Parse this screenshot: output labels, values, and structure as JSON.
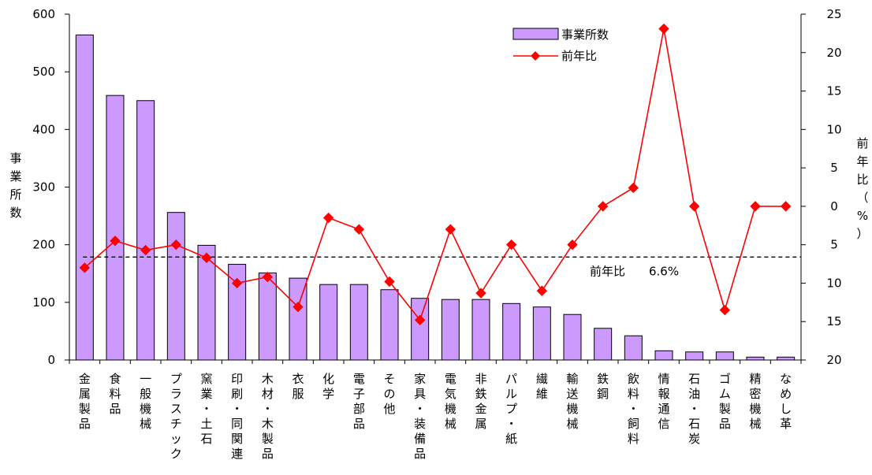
{
  "chart_data": {
    "type": "bar",
    "categories": [
      "金属製品",
      "食料品",
      "一般機械",
      "プラスチック",
      "窯業・土石",
      "印刷・同関連",
      "木材・木製品",
      "衣服",
      "化学",
      "電子部品",
      "その他",
      "家具・装備品",
      "電気機械",
      "非鉄金属",
      "パルプ・紙",
      "繊維",
      "輸送機械",
      "鉄鋼",
      "飲料・飼料",
      "情報通信",
      "石油・石炭",
      "ゴム製品",
      "精密機械",
      "なめし革"
    ],
    "series": [
      {
        "name": "事業所数",
        "axis": "left",
        "kind": "bar",
        "color": "#cc99ff",
        "values": [
          564,
          459,
          450,
          256,
          199,
          166,
          151,
          142,
          131,
          131,
          122,
          107,
          105,
          105,
          98,
          92,
          79,
          55,
          42,
          16,
          14,
          14,
          5,
          5
        ]
      },
      {
        "name": "前年比",
        "axis": "right",
        "kind": "line",
        "color": "#ff0000",
        "values": [
          -8.0,
          -4.5,
          -5.7,
          -5.0,
          -6.7,
          -10.0,
          -9.2,
          -13.1,
          -1.5,
          -3.0,
          -9.8,
          -14.8,
          -3.0,
          -11.3,
          -5.0,
          -11.0,
          -5.0,
          0.0,
          2.4,
          23.1,
          0.0,
          -13.5,
          0.0,
          0.0
        ]
      }
    ],
    "reference_line": {
      "value": -6.6,
      "axis": "right",
      "label": "前年比",
      "value_label": "6.6%",
      "style": "dashed"
    },
    "y_left": {
      "label": "事業所数",
      "range": [
        0,
        600
      ],
      "ticks": [
        0,
        100,
        200,
        300,
        400,
        500,
        600
      ]
    },
    "y_right": {
      "label": "前年比（%）",
      "range": [
        -20,
        25
      ],
      "ticks": [
        25,
        20,
        15,
        10,
        5,
        0,
        -5,
        -10,
        -15,
        -20
      ],
      "tick_labels": [
        "25",
        "20",
        "15",
        "10",
        "5",
        "0",
        "5",
        "10",
        "15",
        "20"
      ]
    },
    "legend": {
      "position": "top-right",
      "items": [
        "事業所数",
        "前年比"
      ]
    },
    "grid": false
  }
}
